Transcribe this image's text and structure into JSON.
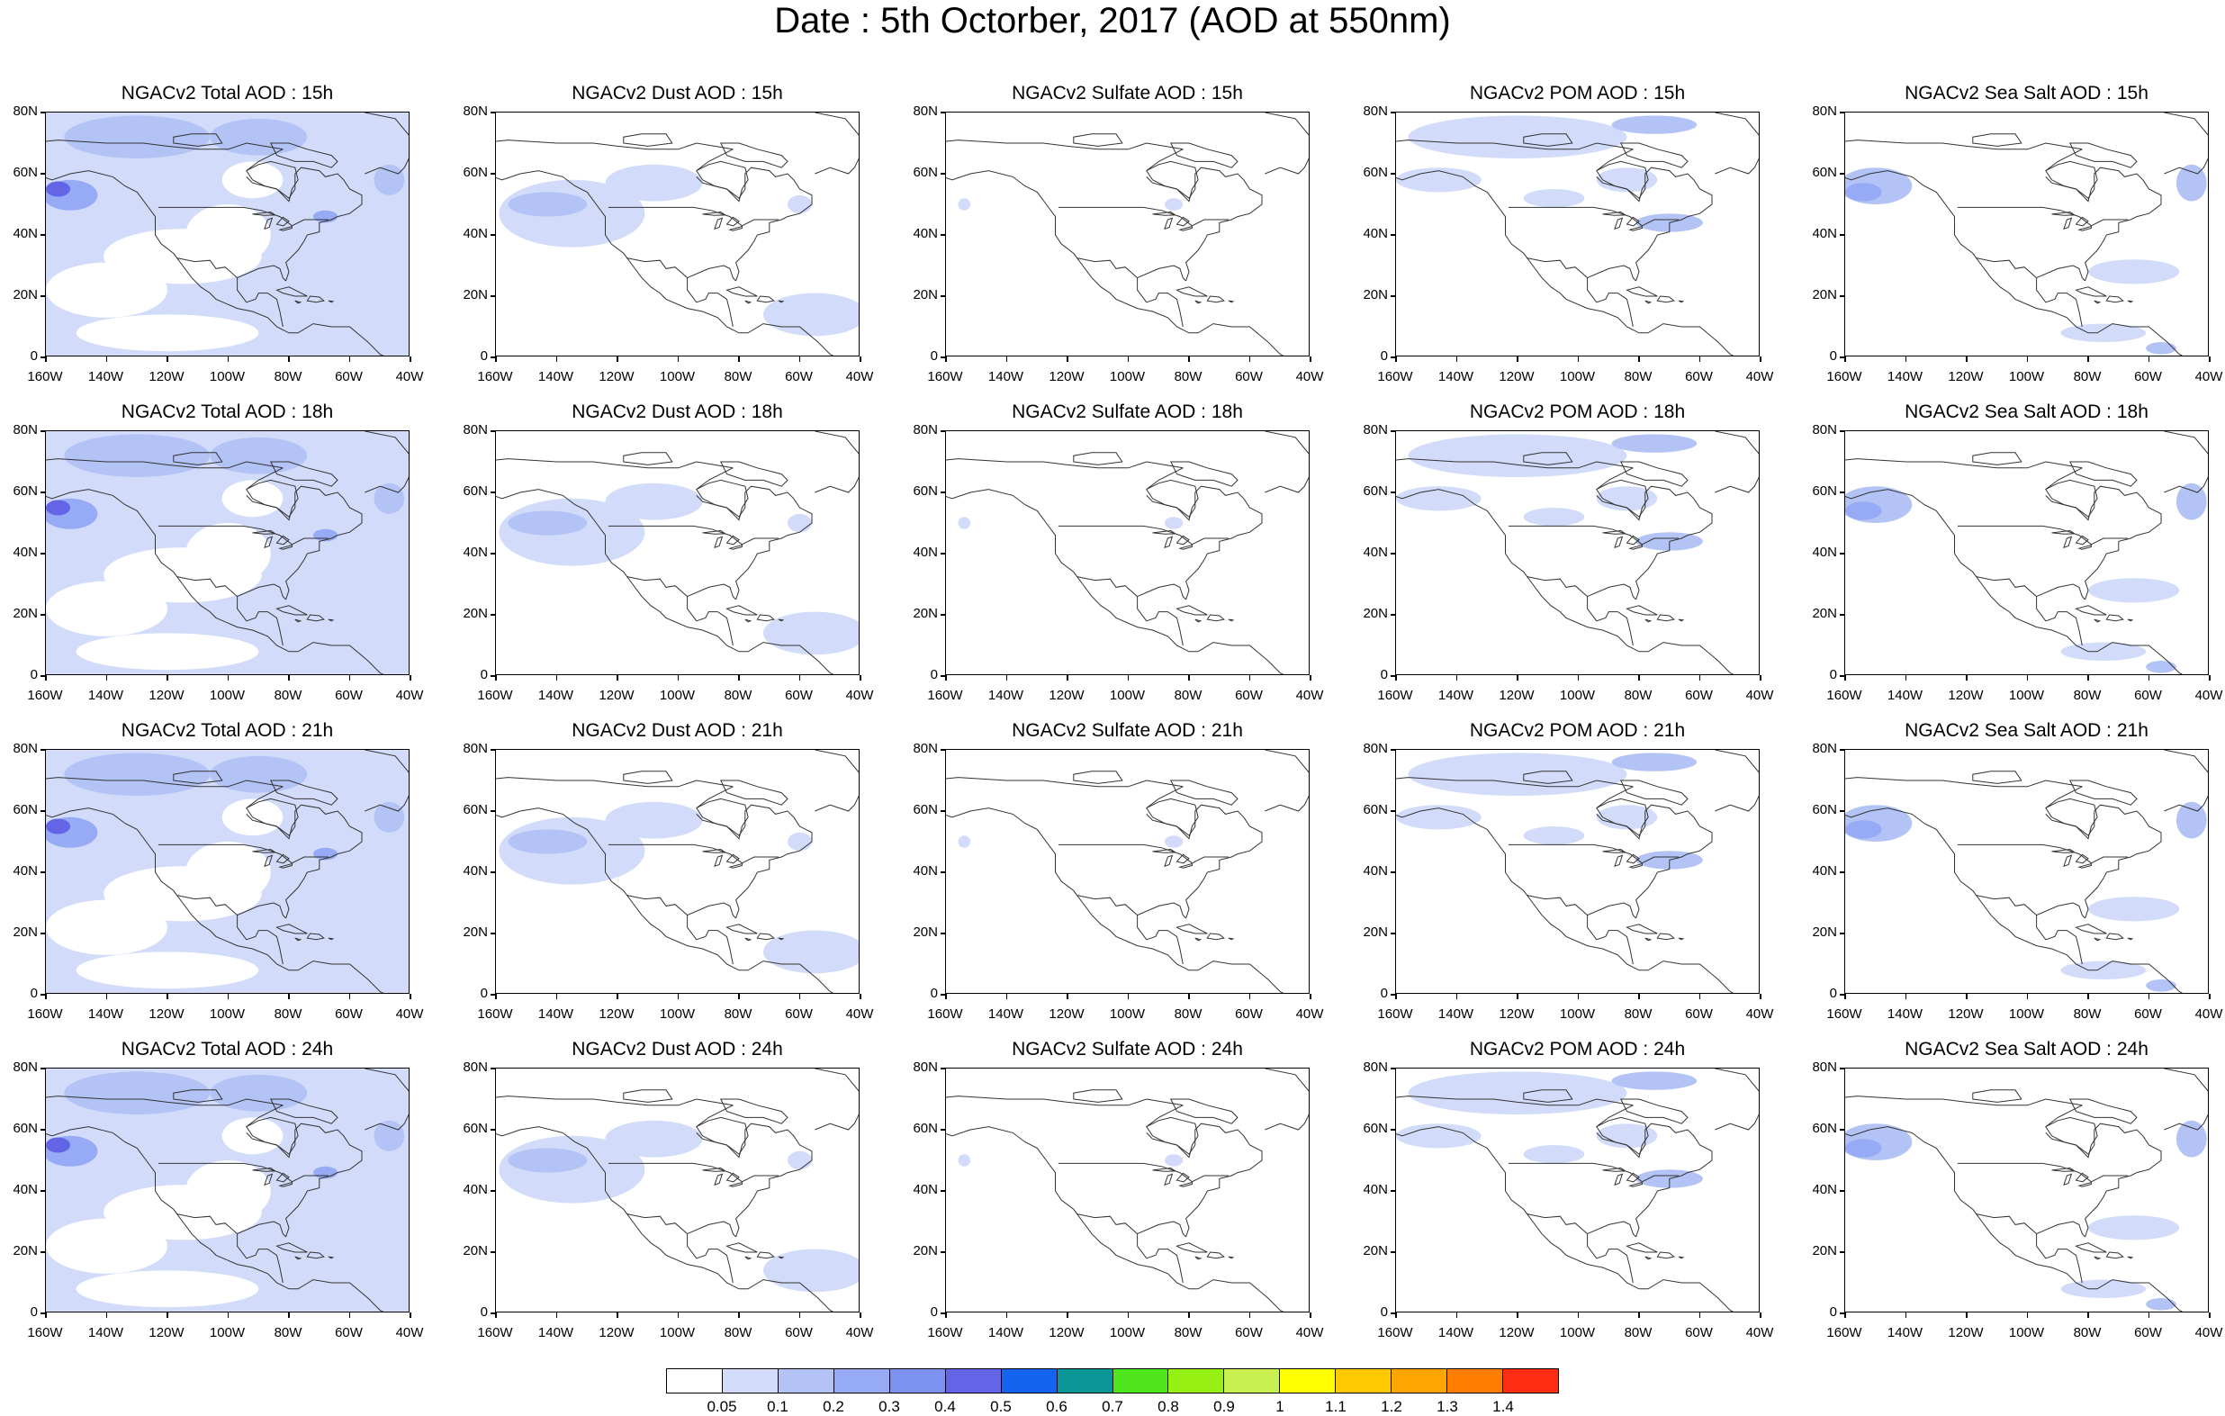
{
  "title": "Date : 5th Octorber, 2017 (AOD at 550nm)",
  "columns": [
    {
      "key": "total",
      "name": "NGACv2 Total AOD"
    },
    {
      "key": "dust",
      "name": "NGACv2 Dust AOD"
    },
    {
      "key": "sulfate",
      "name": "NGACv2 Sulfate AOD"
    },
    {
      "key": "pom",
      "name": "NGACv2 POM AOD"
    },
    {
      "key": "seasalt",
      "name": "NGACv2 Sea Salt AOD"
    }
  ],
  "rows": [
    "15h",
    "18h",
    "21h",
    "24h"
  ],
  "panel_titles": [
    [
      "NGACv2 Total AOD : 15h",
      "NGACv2 Dust AOD : 15h",
      "NGACv2 Sulfate AOD : 15h",
      "NGACv2 POM AOD : 15h",
      "NGACv2 Sea Salt AOD : 15h"
    ],
    [
      "NGACv2 Total AOD : 18h",
      "NGACv2 Dust AOD : 18h",
      "NGACv2 Sulfate AOD : 18h",
      "NGACv2 POM AOD : 18h",
      "NGACv2 Sea Salt AOD : 18h"
    ],
    [
      "NGACv2 Total AOD : 21h",
      "NGACv2 Dust AOD : 21h",
      "NGACv2 Sulfate AOD : 21h",
      "NGACv2 POM AOD : 21h",
      "NGACv2 Sea Salt AOD : 21h"
    ],
    [
      "NGACv2 Total AOD : 24h",
      "NGACv2 Dust AOD : 24h",
      "NGACv2 Sulfate AOD : 24h",
      "NGACv2 POM AOD : 24h",
      "NGACv2 Sea Salt  AOD : 24h"
    ]
  ],
  "x_ticks": [
    "160W",
    "140W",
    "120W",
    "100W",
    "80W",
    "60W",
    "40W"
  ],
  "y_ticks": [
    "80N",
    "60N",
    "40N",
    "20N",
    "0"
  ],
  "lon_range": [
    -160,
    -40
  ],
  "lat_range": [
    0,
    80
  ],
  "colorbar": {
    "colors": [
      "#ffffff",
      "#d2dcfa",
      "#b4c3f5",
      "#96aaf5",
      "#7d91f0",
      "#6464e6",
      "#1464f0",
      "#0a9696",
      "#50e61e",
      "#96f014",
      "#c8f050",
      "#ffff00",
      "#ffc800",
      "#ffa500",
      "#ff7d00",
      "#ff2d14"
    ],
    "labels": [
      "0.05",
      "0.1",
      "0.2",
      "0.3",
      "0.4",
      "0.5",
      "0.6",
      "0.7",
      "0.8",
      "0.9",
      "1",
      "1.1",
      "1.2",
      "1.3",
      "1.4"
    ]
  },
  "map_data": {
    "total": {
      "bg": "#d2dcfa",
      "blobs": [
        {
          "lon": -152,
          "lat": 53,
          "rlon": 9,
          "rlat": 5,
          "level": 3
        },
        {
          "lon": -156,
          "lat": 55,
          "rlon": 4,
          "rlat": 2.5,
          "level": 5
        },
        {
          "lon": -130,
          "lat": 72,
          "rlon": 24,
          "rlat": 7,
          "level": 2
        },
        {
          "lon": -90,
          "lat": 72,
          "rlon": 16,
          "rlat": 6,
          "level": 2
        },
        {
          "lon": -47,
          "lat": 58,
          "rlon": 5,
          "rlat": 5,
          "level": 2
        },
        {
          "lon": -68,
          "lat": 46,
          "rlon": 4,
          "rlat": 2,
          "level": 3
        }
      ],
      "holes": [
        {
          "lon": -115,
          "lat": 33,
          "rlon": 26,
          "rlat": 9
        },
        {
          "lon": -140,
          "lat": 22,
          "rlon": 20,
          "rlat": 9
        },
        {
          "lon": -100,
          "lat": 40,
          "rlon": 14,
          "rlat": 10
        },
        {
          "lon": -120,
          "lat": 8,
          "rlon": 30,
          "rlat": 6
        },
        {
          "lon": -92,
          "lat": 58,
          "rlon": 10,
          "rlat": 6
        }
      ]
    },
    "dust": {
      "bg": null,
      "blobs": [
        {
          "lon": -135,
          "lat": 47,
          "rlon": 24,
          "rlat": 11,
          "level": 1
        },
        {
          "lon": -108,
          "lat": 57,
          "rlon": 16,
          "rlat": 6,
          "level": 1
        },
        {
          "lon": -55,
          "lat": 14,
          "rlon": 17,
          "rlat": 7,
          "level": 1
        },
        {
          "lon": -143,
          "lat": 50,
          "rlon": 13,
          "rlat": 4,
          "level": 2
        },
        {
          "lon": -60,
          "lat": 50,
          "rlon": 4,
          "rlat": 3,
          "level": 1
        }
      ],
      "holes": []
    },
    "sulfate": {
      "bg": null,
      "blobs": [
        {
          "lon": -154,
          "lat": 50,
          "rlon": 2,
          "rlat": 2,
          "level": 1
        },
        {
          "lon": -85,
          "lat": 50,
          "rlon": 3,
          "rlat": 2,
          "level": 1
        }
      ],
      "holes": []
    },
    "pom": {
      "bg": null,
      "blobs": [
        {
          "lon": -120,
          "lat": 72,
          "rlon": 36,
          "rlat": 7,
          "level": 1
        },
        {
          "lon": -146,
          "lat": 58,
          "rlon": 14,
          "rlat": 4,
          "level": 1
        },
        {
          "lon": -70,
          "lat": 44,
          "rlon": 11,
          "rlat": 3,
          "level": 2
        },
        {
          "lon": -84,
          "lat": 58,
          "rlon": 10,
          "rlat": 4,
          "level": 1
        },
        {
          "lon": -108,
          "lat": 52,
          "rlon": 10,
          "rlat": 3,
          "level": 1
        },
        {
          "lon": -75,
          "lat": 76,
          "rlon": 14,
          "rlat": 3,
          "level": 2
        }
      ],
      "holes": []
    },
    "seasalt": {
      "bg": null,
      "blobs": [
        {
          "lon": -150,
          "lat": 56,
          "rlon": 12,
          "rlat": 6,
          "level": 2
        },
        {
          "lon": -154,
          "lat": 54,
          "rlon": 6,
          "rlat": 3,
          "level": 3
        },
        {
          "lon": -46,
          "lat": 57,
          "rlon": 5,
          "rlat": 6,
          "level": 2
        },
        {
          "lon": -65,
          "lat": 28,
          "rlon": 15,
          "rlat": 4,
          "level": 1
        },
        {
          "lon": -75,
          "lat": 8,
          "rlon": 14,
          "rlat": 3,
          "level": 1
        },
        {
          "lon": -56,
          "lat": 3,
          "rlon": 5,
          "rlat": 2,
          "level": 2
        }
      ],
      "holes": []
    }
  }
}
